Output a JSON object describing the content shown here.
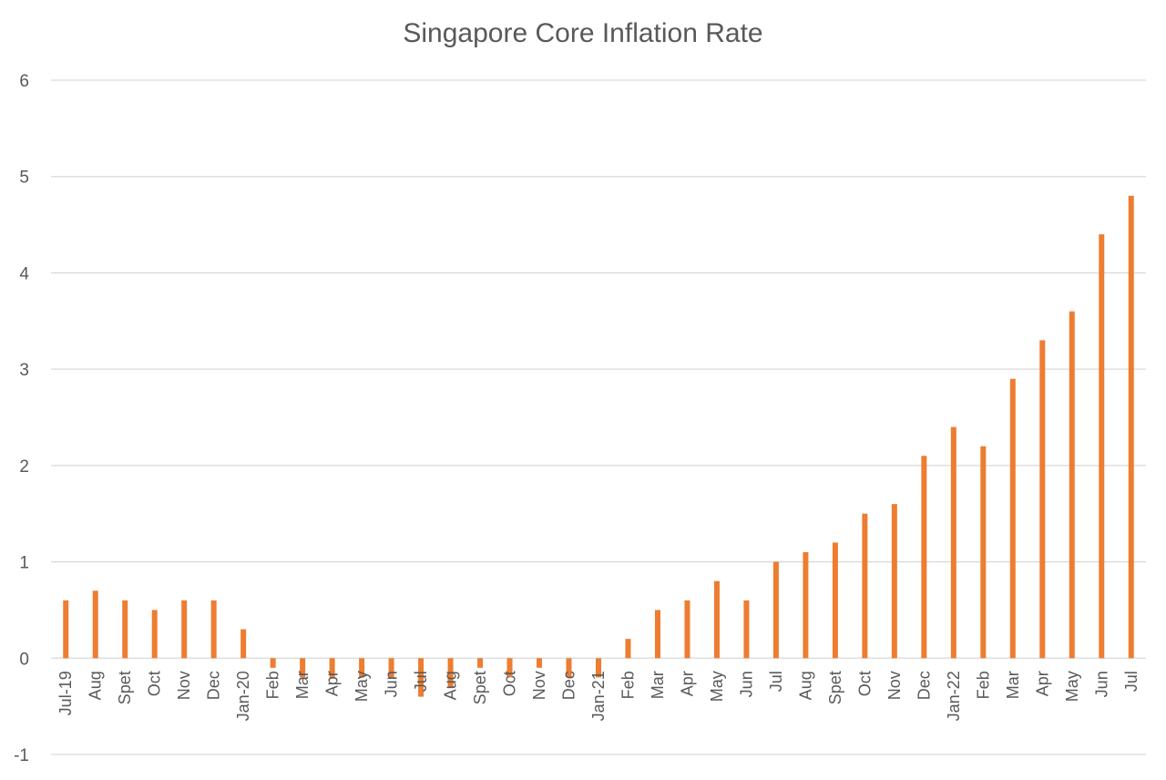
{
  "chart_data": {
    "type": "bar",
    "title": "Singapore Core Inflation Rate",
    "xlabel": "",
    "ylabel": "",
    "ylim": [
      -1,
      6
    ],
    "yticks": [
      -1,
      0,
      1,
      2,
      3,
      4,
      5,
      6
    ],
    "grid": true,
    "legend": "none",
    "bar_color": "#ED7D31",
    "grid_color": "#D9D9D9",
    "text_color": "#595959",
    "categories": [
      "Jul-19",
      "Aug",
      "Spet",
      "Oct",
      "Nov",
      "Dec",
      "Jan-20",
      "Feb",
      "Mar",
      "Apr",
      "May",
      "Jun",
      "Jul",
      "Aug",
      "Spet",
      "Oct",
      "Nov",
      "Dec",
      "Jan-21",
      "Feb",
      "Mar",
      "Apr",
      "May",
      "Jun",
      "Jul",
      "Aug",
      "Spet",
      "Oct",
      "Nov",
      "Dec",
      "Jan-22",
      "Feb",
      "Mar",
      "Apr",
      "May",
      "Jun",
      "Jul"
    ],
    "values": [
      0.6,
      0.7,
      0.6,
      0.5,
      0.6,
      0.6,
      0.3,
      -0.1,
      -0.2,
      -0.2,
      -0.2,
      -0.2,
      -0.4,
      -0.3,
      -0.1,
      -0.2,
      -0.1,
      -0.2,
      -0.2,
      0.2,
      0.5,
      0.6,
      0.8,
      0.6,
      1.0,
      1.1,
      1.2,
      1.5,
      1.6,
      2.1,
      2.4,
      2.2,
      2.9,
      3.3,
      3.6,
      4.4,
      4.8
    ]
  }
}
